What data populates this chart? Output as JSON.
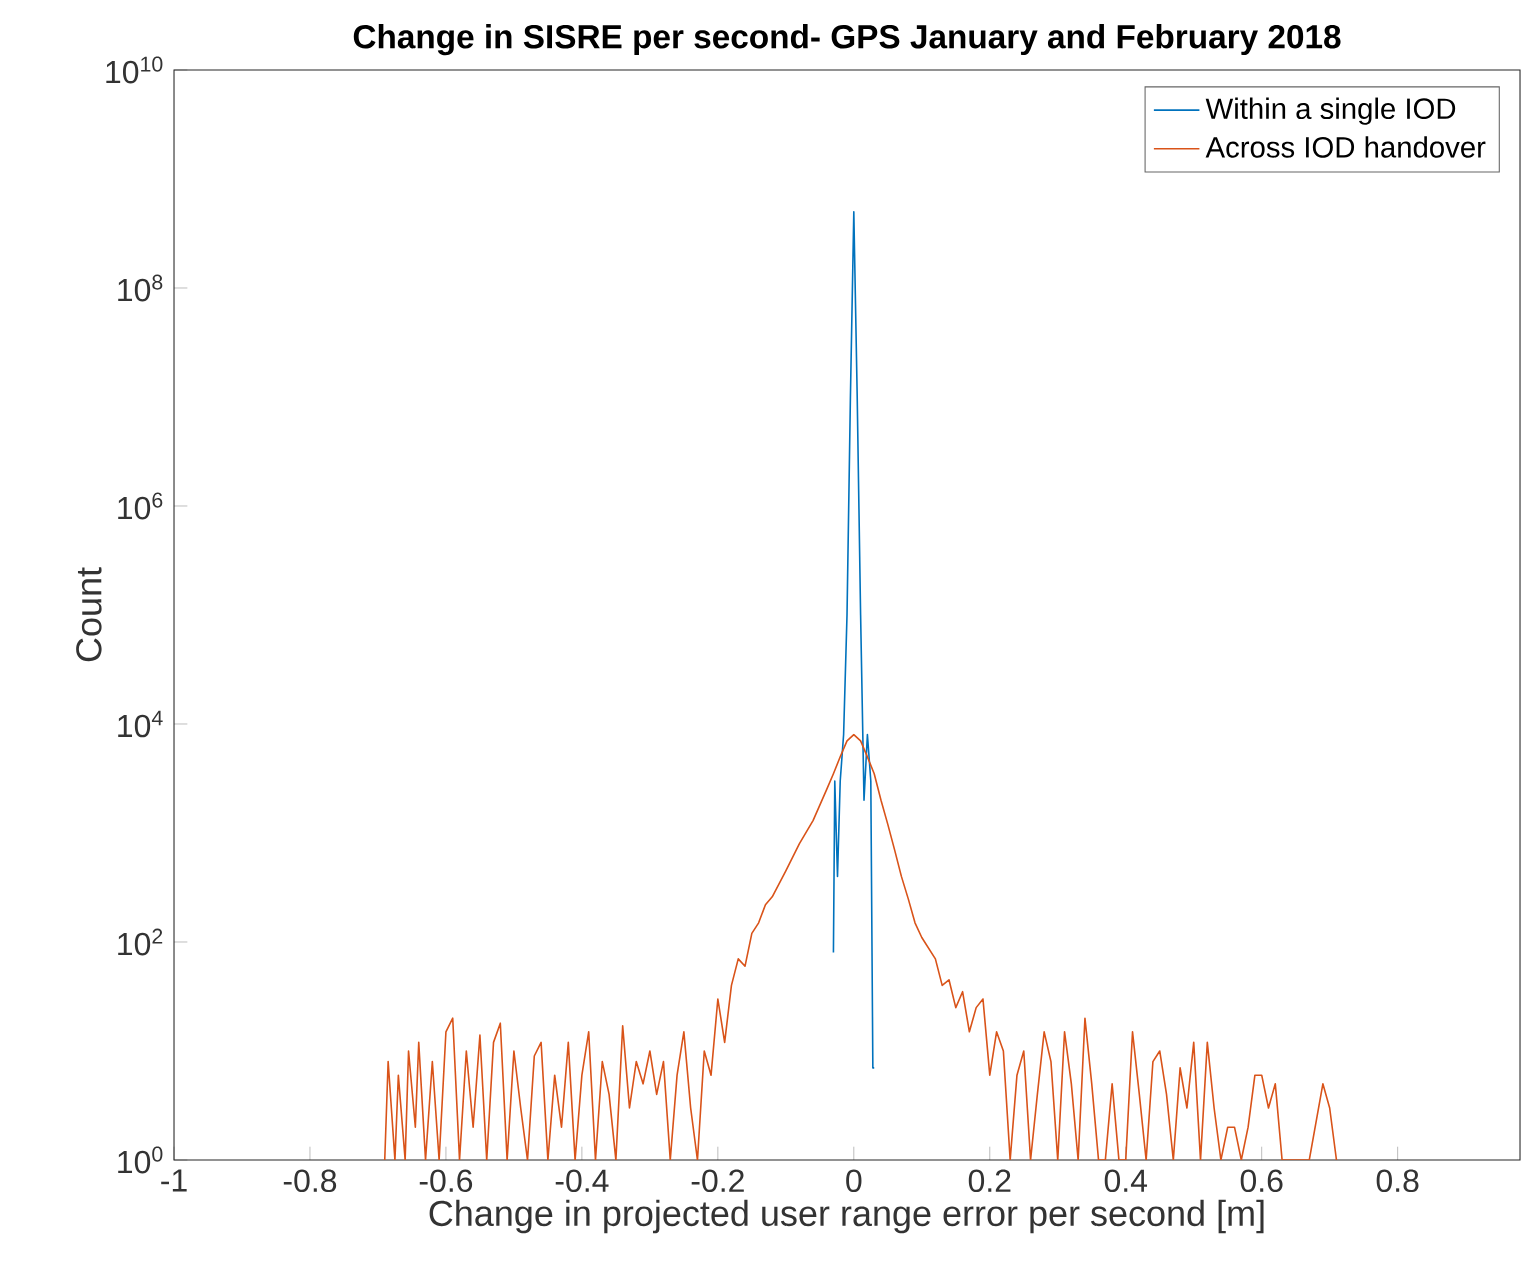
{
  "chart_data": {
    "type": "line",
    "title": "Change in SISRE per second- GPS January and February 2018",
    "xlabel": "Change in projected user range error per second [m]",
    "ylabel": "Count",
    "log": "y",
    "grid": false,
    "legend": "top right",
    "marker": "none",
    "line_style": "solid",
    "xlim": [
      -1,
      0.98
    ],
    "ylim": [
      1,
      10000000000
    ],
    "xticks": [
      -1,
      -0.8,
      -0.6,
      -0.4,
      -0.2,
      0,
      0.2,
      0.4,
      0.6,
      0.8
    ],
    "yticks": [
      {
        "value": 1,
        "label": "10$^{0}$"
      },
      {
        "value": 100,
        "label": "10$^{2}$"
      },
      {
        "value": 10000,
        "label": "10$^{4}$"
      },
      {
        "value": 1000000,
        "label": "10$^{6}$"
      },
      {
        "value": 100000000,
        "label": "10$^{8}$"
      },
      {
        "value": 10000000000,
        "label": "10$^{10}$"
      }
    ],
    "series": [
      {
        "name": "Within a single IOD",
        "color": "#0072bd",
        "x": [
          -0.03,
          -0.028,
          -0.024,
          -0.02,
          -0.015,
          -0.01,
          -0.005,
          0,
          0.005,
          0.01,
          0.015,
          0.02,
          0.025,
          0.028,
          0.03
        ],
        "values": [
          80,
          3000,
          400,
          3000,
          8000,
          100000,
          10000000,
          500000000,
          10000000,
          100000,
          2000,
          8000,
          3000,
          7,
          7
        ]
      },
      {
        "name": "Across IOD handover",
        "color": "#d95319",
        "x": [
          -0.69,
          -0.685,
          -0.675,
          -0.67,
          -0.66,
          -0.655,
          -0.645,
          -0.64,
          -0.63,
          -0.62,
          -0.61,
          -0.6,
          -0.59,
          -0.58,
          -0.57,
          -0.56,
          -0.55,
          -0.54,
          -0.53,
          -0.52,
          -0.51,
          -0.5,
          -0.49,
          -0.48,
          -0.47,
          -0.46,
          -0.45,
          -0.44,
          -0.43,
          -0.42,
          -0.41,
          -0.4,
          -0.39,
          -0.38,
          -0.37,
          -0.36,
          -0.35,
          -0.34,
          -0.33,
          -0.32,
          -0.31,
          -0.3,
          -0.29,
          -0.28,
          -0.27,
          -0.26,
          -0.25,
          -0.24,
          -0.23,
          -0.22,
          -0.21,
          -0.2,
          -0.19,
          -0.18,
          -0.17,
          -0.16,
          -0.15,
          -0.14,
          -0.13,
          -0.12,
          -0.1,
          -0.08,
          -0.06,
          -0.04,
          -0.03,
          -0.02,
          -0.01,
          0,
          0.01,
          0.02,
          0.03,
          0.04,
          0.05,
          0.06,
          0.07,
          0.08,
          0.09,
          0.1,
          0.12,
          0.13,
          0.14,
          0.15,
          0.16,
          0.17,
          0.18,
          0.19,
          0.2,
          0.21,
          0.22,
          0.23,
          0.24,
          0.25,
          0.26,
          0.27,
          0.28,
          0.29,
          0.3,
          0.31,
          0.32,
          0.33,
          0.34,
          0.35,
          0.36,
          0.37,
          0.38,
          0.39,
          0.4,
          0.41,
          0.42,
          0.43,
          0.44,
          0.45,
          0.46,
          0.47,
          0.48,
          0.49,
          0.5,
          0.51,
          0.52,
          0.53,
          0.54,
          0.55,
          0.56,
          0.57,
          0.58,
          0.59,
          0.6,
          0.61,
          0.62,
          0.63,
          0.64,
          0.65,
          0.66,
          0.67,
          0.69,
          0.7,
          0.71
        ],
        "values": [
          1,
          8,
          1,
          6,
          1,
          10,
          2,
          12,
          1,
          8,
          1,
          15,
          20,
          1,
          10,
          2,
          14,
          1,
          12,
          18,
          1,
          10,
          3,
          1,
          9,
          12,
          1,
          6,
          2,
          12,
          1,
          6,
          15,
          1,
          8,
          4,
          1,
          17,
          3,
          8,
          5,
          10,
          4,
          8,
          1,
          6,
          15,
          3,
          1,
          10,
          6,
          30,
          12,
          40,
          70,
          60,
          120,
          150,
          220,
          260,
          450,
          800,
          1300,
          2500,
          3500,
          5000,
          7000,
          8000,
          7000,
          5000,
          3500,
          2000,
          1200,
          700,
          400,
          250,
          150,
          110,
          70,
          40,
          45,
          25,
          35,
          15,
          25,
          30,
          6,
          15,
          10,
          1,
          6,
          10,
          1,
          4,
          15,
          8,
          1,
          15,
          5,
          1,
          20,
          5,
          1,
          1,
          5,
          1,
          1,
          15,
          4,
          1,
          8,
          10,
          4,
          1,
          7,
          3,
          12,
          1,
          12,
          3,
          1,
          2,
          2,
          1,
          2,
          6,
          6,
          3,
          5,
          1,
          1,
          1,
          1,
          1,
          5,
          3,
          1
        ]
      }
    ]
  }
}
